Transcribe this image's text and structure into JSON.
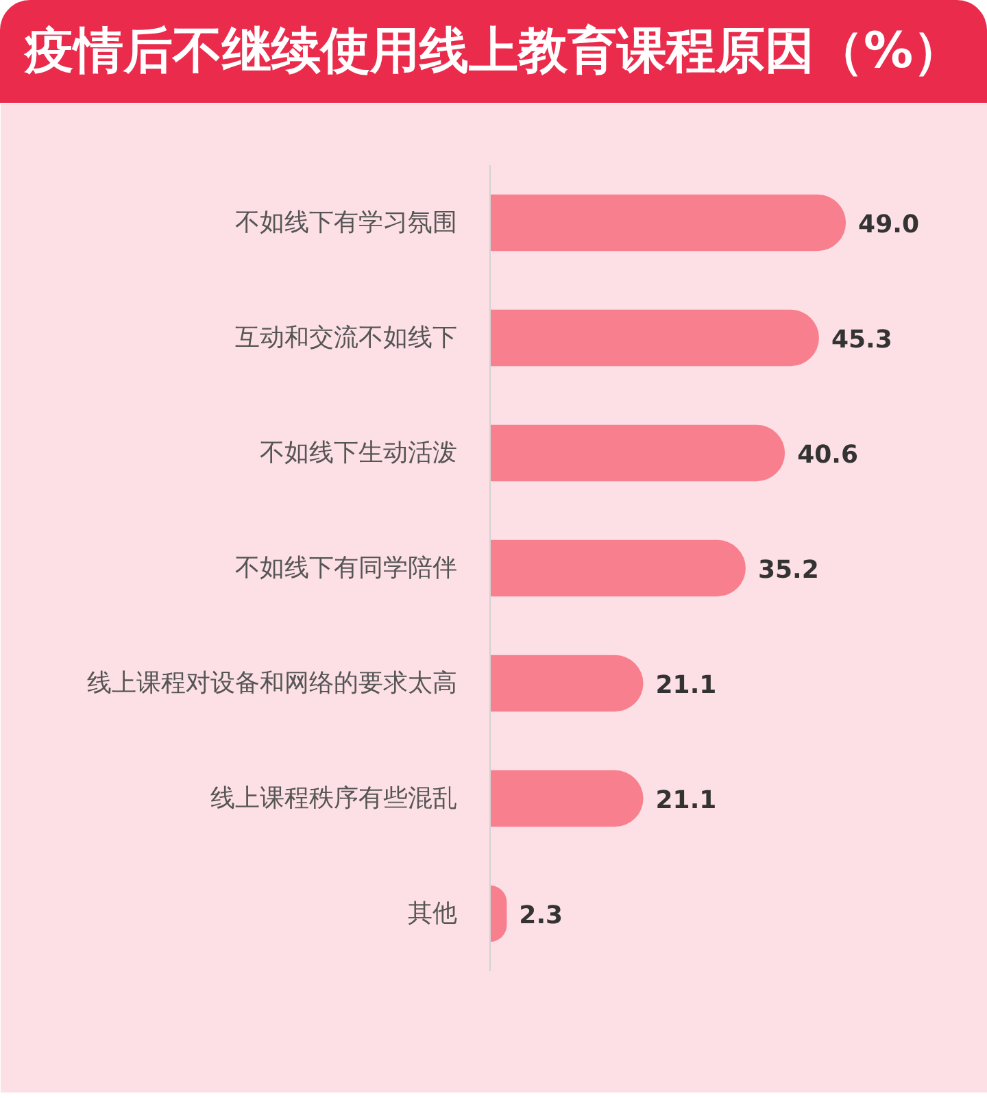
{
  "chart_data": {
    "type": "bar",
    "orientation": "horizontal",
    "title": "疫情后不继续使用线上教育课程原因（%）",
    "categories": [
      "不如线下有学习氛围",
      "互动和交流不如线下",
      "不如线下生动活泼",
      "不如线下有同学陪伴",
      "线上课程对设备和网络的要求太高",
      "线上课程秩序有些混乱",
      "其他"
    ],
    "values": [
      49.0,
      45.3,
      40.6,
      35.2,
      21.1,
      21.1,
      2.3
    ],
    "value_labels": [
      "49.0",
      "45.3",
      "40.6",
      "35.2",
      "21.1",
      "21.1",
      "2.3"
    ],
    "color": "#f8808e"
  }
}
